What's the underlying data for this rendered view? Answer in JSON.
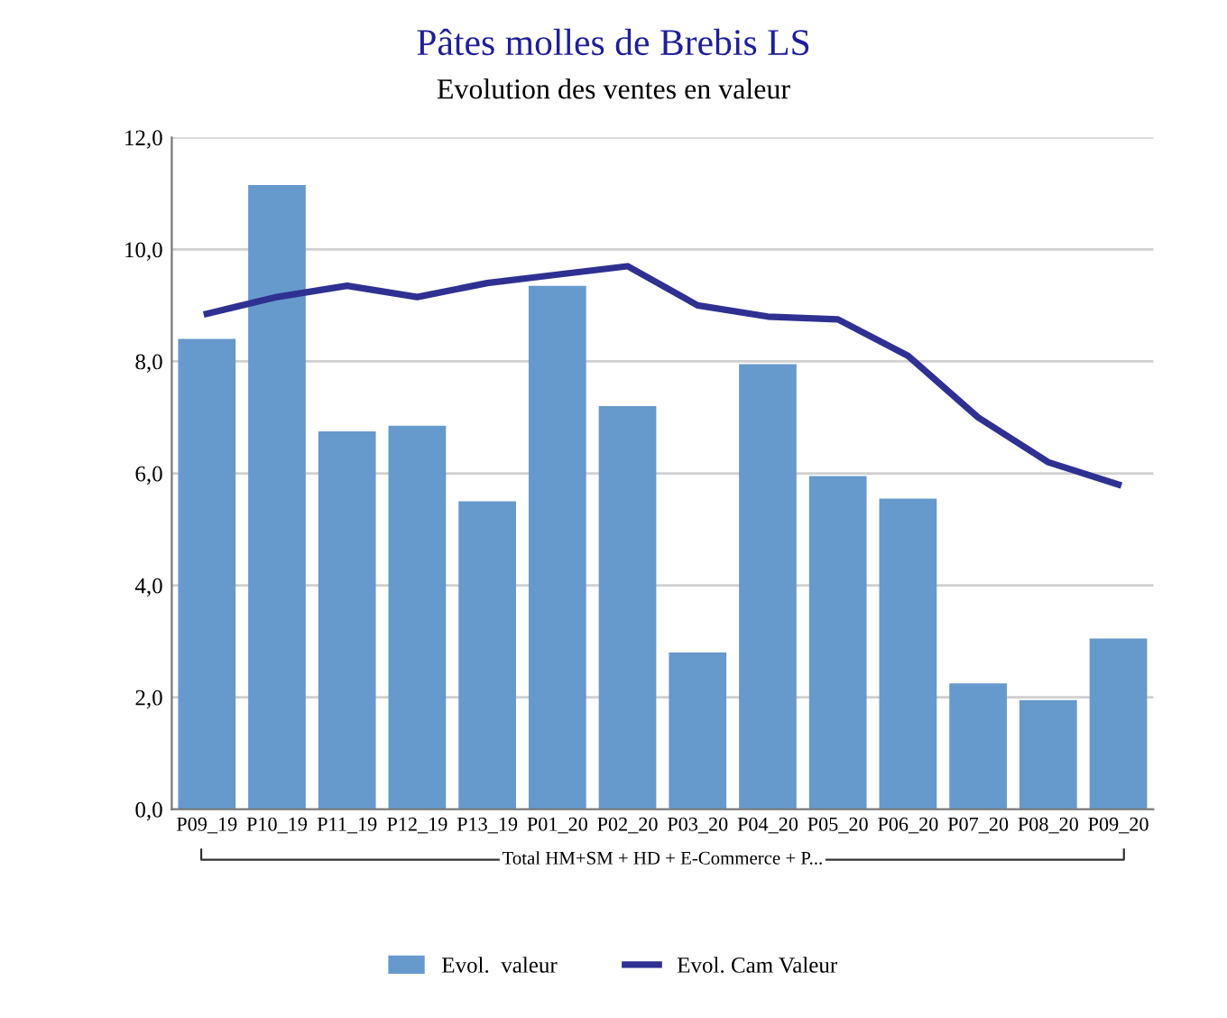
{
  "chart_data": {
    "type": "bar",
    "title": "Pâtes molles de Brebis LS",
    "subtitle": "Evolution des ventes en valeur",
    "categories": [
      "P09_19",
      "P10_19",
      "P11_19",
      "P12_19",
      "P13_19",
      "P01_20",
      "P02_20",
      "P03_20",
      "P04_20",
      "P05_20",
      "P06_20",
      "P07_20",
      "P08_20",
      "P09_20"
    ],
    "series": [
      {
        "name": "Evol.  valeur",
        "color": "#6699cc",
        "values": [
          8.4,
          11.15,
          6.75,
          6.85,
          5.5,
          9.35,
          7.2,
          2.8,
          7.95,
          5.95,
          5.55,
          2.25,
          1.95,
          3.05
        ]
      },
      {
        "name": "Evol. Cam Valeur",
        "type": "line",
        "color": "#2e3192",
        "values": [
          8.85,
          9.15,
          9.35,
          9.15,
          9.4,
          9.55,
          9.7,
          9.0,
          8.8,
          8.75,
          8.1,
          7.0,
          6.2,
          5.8
        ]
      }
    ],
    "ylim": [
      0,
      12
    ],
    "yticks": [
      {
        "value": 0,
        "label": "0,0"
      },
      {
        "value": 2,
        "label": "2,0"
      },
      {
        "value": 4,
        "label": "4,0"
      },
      {
        "value": 6,
        "label": "6,0"
      },
      {
        "value": 8,
        "label": "8,0"
      },
      {
        "value": 10,
        "label": "10,0"
      },
      {
        "value": 12,
        "label": "12,0"
      }
    ],
    "grid": "y",
    "legend": "bottom",
    "marker": "none",
    "line_style": "solid",
    "annotations": [
      "Total HM+SM + HD + E-Commerce + P..."
    ]
  }
}
